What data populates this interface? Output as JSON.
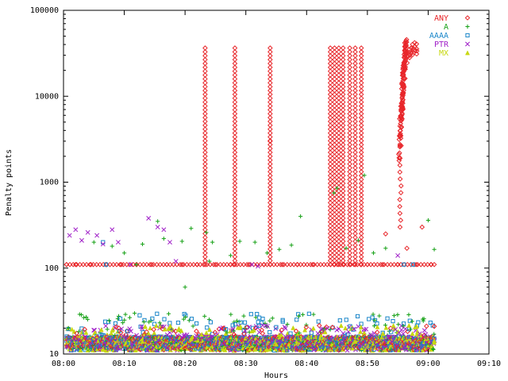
{
  "chart_data": {
    "type": "scatter",
    "title": "",
    "xlabel": "Hours",
    "ylabel": "Penalty points",
    "yscale": "log",
    "ylim": [
      10,
      100000
    ],
    "xlim_minutes": [
      0,
      70
    ],
    "x_tick_labels": [
      "08:00",
      "08:10",
      "08:20",
      "08:30",
      "08:40",
      "08:50",
      "09:00",
      "09:10"
    ],
    "x_tick_minutes": [
      0,
      10,
      20,
      30,
      40,
      50,
      60,
      70
    ],
    "y_tick_values": [
      10,
      100,
      1000,
      10000,
      100000
    ],
    "y_tick_labels": [
      "10",
      "100",
      "1000",
      "10000",
      "100000"
    ],
    "legend_position": "top-right",
    "series": [
      {
        "name": "ANY",
        "color": "#e8262a",
        "marker": "diamond",
        "vertical_bursts_minutes": [
          23.3,
          28.2,
          34.0,
          43.9,
          44.6,
          45.3,
          46.0,
          47.1,
          48.0,
          49.0
        ],
        "burst_max": 37000,
        "extra_points": [
          [
            34.0,
            3000
          ],
          [
            0.5,
            110
          ],
          [
            2.0,
            110
          ],
          [
            4.5,
            110
          ],
          [
            7.0,
            110
          ],
          [
            9.5,
            110
          ],
          [
            12.0,
            110
          ],
          [
            14.5,
            110
          ],
          [
            17.0,
            110
          ],
          [
            19.5,
            110
          ],
          [
            22.0,
            110
          ],
          [
            25.0,
            110
          ],
          [
            27.5,
            110
          ],
          [
            30.5,
            110
          ],
          [
            33.0,
            110
          ],
          [
            36.0,
            110
          ],
          [
            38.5,
            110
          ],
          [
            41.0,
            110
          ],
          [
            50.0,
            110
          ],
          [
            52.5,
            110
          ],
          [
            55.0,
            110
          ],
          [
            58.0,
            110
          ],
          [
            60.5,
            110
          ],
          [
            59.0,
            300
          ],
          [
            53.0,
            250
          ],
          [
            56.5,
            170
          ]
        ],
        "steep_rise": {
          "from_min": 55.3,
          "to_min": 56.4,
          "from_value": 2000,
          "to_value": 40000
        },
        "tail_points": [
          [
            56.6,
            28000
          ],
          [
            56.9,
            30000
          ],
          [
            57.2,
            32000
          ],
          [
            57.5,
            35000
          ],
          [
            57.8,
            37000
          ],
          [
            58.1,
            36000
          ]
        ]
      },
      {
        "name": "A",
        "color": "#16a116",
        "marker": "plus",
        "points": [
          [
            5.0,
            200
          ],
          [
            8.0,
            180
          ],
          [
            10.0,
            150
          ],
          [
            13.0,
            190
          ],
          [
            15.5,
            350
          ],
          [
            16.5,
            220
          ],
          [
            19.5,
            205
          ],
          [
            21.0,
            290
          ],
          [
            23.5,
            260
          ],
          [
            24.5,
            200
          ],
          [
            27.5,
            140
          ],
          [
            29.0,
            205
          ],
          [
            31.5,
            200
          ],
          [
            33.5,
            150
          ],
          [
            35.5,
            165
          ],
          [
            37.5,
            185
          ],
          [
            39.0,
            400
          ],
          [
            44.5,
            750
          ],
          [
            45.0,
            850
          ],
          [
            46.5,
            170
          ],
          [
            48.5,
            210
          ],
          [
            49.5,
            1200
          ],
          [
            51.0,
            150
          ],
          [
            53.0,
            170
          ],
          [
            60.0,
            360
          ],
          [
            61.0,
            165
          ],
          [
            20.0,
            60
          ],
          [
            12.0,
            110
          ],
          [
            24.0,
            120
          ]
        ]
      },
      {
        "name": "AAAA",
        "color": "#1a86c9",
        "marker": "square",
        "points": [
          [
            6.5,
            200
          ],
          [
            7.0,
            110
          ],
          [
            56.0,
            110
          ],
          [
            57.5,
            110
          ]
        ]
      },
      {
        "name": "PTR",
        "color": "#a020c8",
        "marker": "cross",
        "points": [
          [
            1.0,
            240
          ],
          [
            2.0,
            280
          ],
          [
            3.0,
            210
          ],
          [
            4.0,
            260
          ],
          [
            5.5,
            240
          ],
          [
            6.5,
            190
          ],
          [
            8.0,
            280
          ],
          [
            9.0,
            200
          ],
          [
            11.0,
            110
          ],
          [
            14.0,
            380
          ],
          [
            15.5,
            300
          ],
          [
            16.5,
            280
          ],
          [
            17.5,
            200
          ],
          [
            18.5,
            120
          ],
          [
            31.0,
            110
          ],
          [
            32.0,
            105
          ],
          [
            55.0,
            140
          ]
        ]
      },
      {
        "name": "MX",
        "color": "#c8d812",
        "marker": "triangle",
        "points": [
          [
            13.0,
            14
          ],
          [
            21.0,
            15
          ],
          [
            35.0,
            13
          ],
          [
            48.0,
            14
          ]
        ]
      }
    ],
    "baseline_band": {
      "from_minute": 0.5,
      "to_minute": 61.0,
      "low": 10.5,
      "high": 30,
      "dense_low": 11,
      "dense_high": 16
    }
  }
}
